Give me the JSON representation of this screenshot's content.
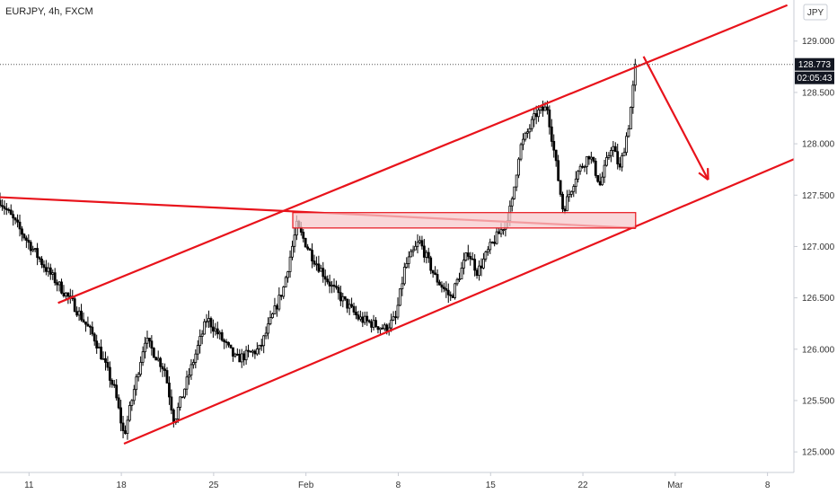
{
  "header": {
    "title": "EURJPY, 4h, FXCM"
  },
  "currency_badge": "JPY",
  "price_label": {
    "value": "128.773",
    "countdown": "02:05:43"
  },
  "colors": {
    "up": "#ffffff",
    "down": "#000000",
    "wick": "#000000",
    "annotation": "#e8131b",
    "zone_fill": "#f7c9cc",
    "axis_text": "#333333",
    "grid_line": "#e0e3eb"
  },
  "chart_data": {
    "type": "candlestick",
    "title": "EURJPY, 4h, FXCM",
    "ylim": [
      124.8,
      129.4
    ],
    "y_ticks": [
      "125.000",
      "125.500",
      "126.000",
      "126.500",
      "127.000",
      "127.500",
      "128.000",
      "128.500",
      "129.000"
    ],
    "x_ticks": [
      "11",
      "18",
      "25",
      "Feb",
      "8",
      "15",
      "22",
      "Mar",
      "8"
    ],
    "x_tick_days": [
      11,
      18,
      25,
      32,
      39,
      46,
      53,
      60,
      67
    ],
    "xlim_days": [
      8.8,
      69.0
    ],
    "last_price": 128.773,
    "key_points": [
      {
        "day": 8.8,
        "price": 127.45
      },
      {
        "day": 12.2,
        "price": 126.8
      },
      {
        "day": 14.3,
        "price": 126.45
      },
      {
        "day": 16.0,
        "price": 126.1
      },
      {
        "day": 17.5,
        "price": 125.6
      },
      {
        "day": 18.2,
        "price": 125.15
      },
      {
        "day": 19.8,
        "price": 126.1
      },
      {
        "day": 21.3,
        "price": 125.8
      },
      {
        "day": 22.0,
        "price": 125.3
      },
      {
        "day": 24.5,
        "price": 126.3
      },
      {
        "day": 26.7,
        "price": 125.9
      },
      {
        "day": 28.5,
        "price": 126.0
      },
      {
        "day": 30.3,
        "price": 126.6
      },
      {
        "day": 31.3,
        "price": 127.2
      },
      {
        "day": 32.5,
        "price": 126.9
      },
      {
        "day": 34.0,
        "price": 126.6
      },
      {
        "day": 36.0,
        "price": 126.3
      },
      {
        "day": 38.0,
        "price": 126.2
      },
      {
        "day": 38.8,
        "price": 126.3
      },
      {
        "day": 39.5,
        "price": 126.8
      },
      {
        "day": 40.6,
        "price": 127.05
      },
      {
        "day": 41.8,
        "price": 126.7
      },
      {
        "day": 43.0,
        "price": 126.5
      },
      {
        "day": 44.3,
        "price": 126.95
      },
      {
        "day": 45.0,
        "price": 126.75
      },
      {
        "day": 46.0,
        "price": 127.0
      },
      {
        "day": 47.0,
        "price": 127.2
      },
      {
        "day": 47.6,
        "price": 127.4
      },
      {
        "day": 48.2,
        "price": 127.95
      },
      {
        "day": 49.5,
        "price": 128.3
      },
      {
        "day": 50.3,
        "price": 128.35
      },
      {
        "day": 50.9,
        "price": 127.85
      },
      {
        "day": 51.5,
        "price": 127.35
      },
      {
        "day": 52.5,
        "price": 127.7
      },
      {
        "day": 53.5,
        "price": 127.9
      },
      {
        "day": 54.3,
        "price": 127.6
      },
      {
        "day": 55.2,
        "price": 128.0
      },
      {
        "day": 55.8,
        "price": 127.75
      },
      {
        "day": 56.5,
        "price": 128.2
      },
      {
        "day": 57.0,
        "price": 128.773
      }
    ],
    "annotations": [
      {
        "type": "trendline",
        "p1": {
          "day": 13.2,
          "price": 126.45
        },
        "p2": {
          "day": 68.5,
          "price": 129.35
        }
      },
      {
        "type": "trendline",
        "p1": {
          "day": 18.2,
          "price": 125.08
        },
        "p2": {
          "day": 69.0,
          "price": 127.85
        }
      },
      {
        "type": "trendline",
        "p1": {
          "day": 8.8,
          "price": 127.48
        },
        "p2": {
          "day": 57.0,
          "price": 127.18
        }
      },
      {
        "type": "rectangle",
        "day_start": 31.0,
        "day_end": 57.0,
        "price_low": 127.18,
        "price_high": 127.33
      },
      {
        "type": "arrow",
        "from": {
          "day": 57.6,
          "price": 128.85
        },
        "to": {
          "day": 62.5,
          "price": 127.65
        }
      }
    ]
  }
}
